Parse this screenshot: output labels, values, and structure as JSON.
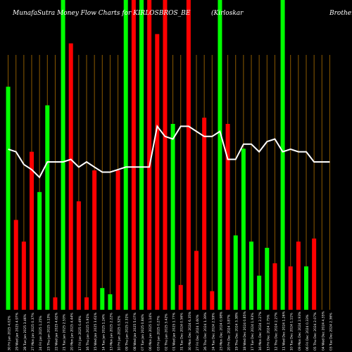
{
  "header": {
    "title": "MunafaSutra  Money Flow  Charts for KIRLOSBROS_BE",
    "company_part1": "(Kirloskar",
    "company_part2": "Brothers"
  },
  "colors": {
    "background": "#000000",
    "up": "#00ff00",
    "down": "#ff0000",
    "grid": "#8b5a00",
    "line": "#ffffff"
  },
  "chart_data": {
    "type": "bar",
    "ylim": [
      0,
      100
    ],
    "grid": "vertical",
    "categories": [
      "30 Fri Jan 2025 4.02%",
      "29 Wed Jan 2025 4.97%",
      "28 Tue Jan 2025 3.46%",
      "27 Mon Jan 2025 0.37%",
      "24 Fri Jan 2025 1.25%",
      "23 Thu Jan 2025 3.13%",
      "22 Wed Jan 2025 4.62%",
      "21 Tue Jan 2025 2.53%",
      "20 Mon Jan 2025 4.44%",
      "17 Fri Jan 2025 0.49%",
      "16 Thu Jan 2025 5.91%",
      "15 Wed Jan 2025 3.61%",
      "14 Tue Jan 2025 1.24%",
      "13 Mon Jan 2025 2.22%",
      "10 Fri Jan 2025 0.52%",
      "09 Thu Jan 2025 2.31%",
      "08 Wed Jan 2025 5.07%",
      "07 Tue Jan 2025 0.84%",
      "06 Mon Jan 2025 1.14%",
      "03 Fri Jan 2025 0.27%",
      "02 Thu Jan 2025 3.42%",
      "01 Wed Jan 2025 1.77%",
      "31 Tue Dec 2024 0.56%",
      "30 Mon Dec 2024 6.35%",
      "27 Fri Dec 2024 1.60%",
      "26 Thu Dec 2024 1.39%",
      "24 Tue Dec 2024 2.59%",
      "23 Mon Dec 2024 0.98%",
      "20 Fri Dec 2024 3.87%",
      "19 Thu Dec 2024 3.38%",
      "18 Wed Dec 2024 0.85%",
      "17 Tue Dec 2024 1.93%",
      "16 Mon Dec 2024 2.27%",
      "13 Fri Dec 2024 2.75%",
      "12 Thu Dec 2024 2.27%",
      "11 Wed Dec 2024 1.26%",
      "10 Tue Dec 2024 1.11%",
      "09 Mon Dec 2024 2.93%",
      "06 Fri Dec 2024 0.33%",
      "05 Thu Dec 2024 2.07%",
      "04 Wed Dec 2024 4.35%",
      "03 Tue Dec 2024 2.36%"
    ],
    "bar_colors": [
      "green",
      "red",
      "red",
      "red",
      "green",
      "green",
      "red",
      "green",
      "red",
      "red",
      "red",
      "red",
      "green",
      "green",
      "red",
      "green",
      "red",
      "green",
      "red",
      "red",
      "red",
      "green",
      "red",
      "red",
      "red",
      "red",
      "red",
      "green",
      "red",
      "green",
      "green",
      "green",
      "green",
      "green",
      "red",
      "green",
      "red",
      "red",
      "green",
      "red",
      "red",
      "red"
    ],
    "values": [
      72,
      29,
      22,
      51,
      38,
      66,
      4,
      100,
      86,
      35,
      4,
      45,
      7,
      5,
      45,
      100,
      100,
      100,
      100,
      89,
      100,
      60,
      8,
      100,
      19,
      62,
      6,
      100,
      60,
      24,
      52,
      22,
      11,
      20,
      15,
      100,
      14,
      22,
      14,
      23,
      0,
      0
    ],
    "line_values": [
      63,
      62,
      57,
      55,
      52,
      58,
      58,
      58,
      59,
      56,
      58,
      56,
      54,
      54,
      55,
      56,
      56,
      56,
      56,
      72,
      68,
      67,
      72,
      72,
      70,
      68,
      68,
      70,
      59,
      59,
      65,
      65,
      62,
      66,
      67,
      62,
      63,
      62,
      62,
      58,
      58,
      58
    ]
  }
}
